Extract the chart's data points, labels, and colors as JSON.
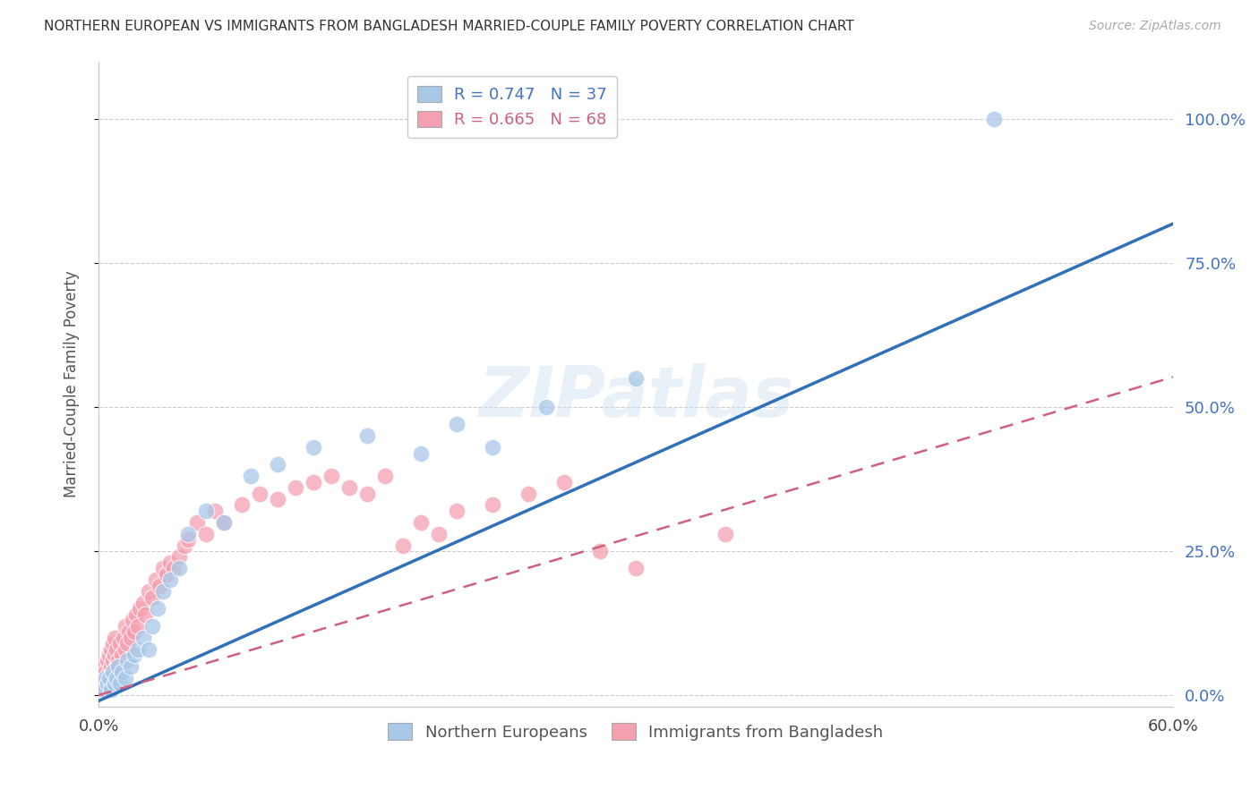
{
  "title": "NORTHERN EUROPEAN VS IMMIGRANTS FROM BANGLADESH MARRIED-COUPLE FAMILY POVERTY CORRELATION CHART",
  "source": "Source: ZipAtlas.com",
  "ylabel": "Married-Couple Family Poverty",
  "xlim": [
    0.0,
    0.6
  ],
  "ylim": [
    -0.02,
    1.1
  ],
  "ytick_labels": [
    "0.0%",
    "25.0%",
    "50.0%",
    "75.0%",
    "100.0%"
  ],
  "ytick_values": [
    0.0,
    0.25,
    0.5,
    0.75,
    1.0
  ],
  "xtick_values": [
    0.0,
    0.1,
    0.2,
    0.3,
    0.4,
    0.5,
    0.6
  ],
  "xtick_labels": [
    "0.0%",
    "",
    "",
    "",
    "",
    "",
    "60.0%"
  ],
  "legend1_label": "R = 0.747   N = 37",
  "legend2_label": "R = 0.665   N = 68",
  "blue_color": "#a8c8e8",
  "pink_color": "#f4a0b0",
  "blue_line_color": "#3070b8",
  "pink_line_color": "#d06080",
  "watermark": "ZIPatlas",
  "ne_R": 0.747,
  "ne_N": 37,
  "bd_R": 0.665,
  "bd_N": 68,
  "northern_europeans_x": [
    0.002,
    0.003,
    0.004,
    0.005,
    0.006,
    0.007,
    0.008,
    0.009,
    0.01,
    0.011,
    0.012,
    0.013,
    0.015,
    0.016,
    0.018,
    0.02,
    0.022,
    0.025,
    0.028,
    0.03,
    0.033,
    0.036,
    0.04,
    0.045,
    0.05,
    0.06,
    0.07,
    0.085,
    0.1,
    0.12,
    0.15,
    0.18,
    0.2,
    0.22,
    0.25,
    0.3,
    0.5
  ],
  "northern_europeans_y": [
    0.02,
    0.01,
    0.03,
    0.02,
    0.03,
    0.01,
    0.04,
    0.02,
    0.03,
    0.05,
    0.02,
    0.04,
    0.03,
    0.06,
    0.05,
    0.07,
    0.08,
    0.1,
    0.08,
    0.12,
    0.15,
    0.18,
    0.2,
    0.22,
    0.28,
    0.32,
    0.3,
    0.38,
    0.4,
    0.43,
    0.45,
    0.42,
    0.47,
    0.43,
    0.5,
    0.55,
    1.0
  ],
  "bangladesh_x": [
    0.001,
    0.002,
    0.003,
    0.003,
    0.004,
    0.004,
    0.005,
    0.005,
    0.006,
    0.006,
    0.007,
    0.007,
    0.008,
    0.008,
    0.009,
    0.009,
    0.01,
    0.01,
    0.011,
    0.012,
    0.013,
    0.014,
    0.015,
    0.015,
    0.016,
    0.017,
    0.018,
    0.019,
    0.02,
    0.021,
    0.022,
    0.023,
    0.025,
    0.026,
    0.028,
    0.03,
    0.032,
    0.034,
    0.036,
    0.038,
    0.04,
    0.042,
    0.045,
    0.048,
    0.05,
    0.055,
    0.06,
    0.065,
    0.07,
    0.08,
    0.09,
    0.1,
    0.11,
    0.12,
    0.13,
    0.14,
    0.15,
    0.16,
    0.17,
    0.18,
    0.19,
    0.2,
    0.22,
    0.24,
    0.26,
    0.28,
    0.3,
    0.35
  ],
  "bangladesh_y": [
    0.02,
    0.01,
    0.03,
    0.05,
    0.02,
    0.04,
    0.03,
    0.06,
    0.04,
    0.07,
    0.05,
    0.08,
    0.06,
    0.09,
    0.07,
    0.1,
    0.05,
    0.08,
    0.06,
    0.09,
    0.07,
    0.1,
    0.08,
    0.12,
    0.09,
    0.11,
    0.1,
    0.13,
    0.11,
    0.14,
    0.12,
    0.15,
    0.16,
    0.14,
    0.18,
    0.17,
    0.2,
    0.19,
    0.22,
    0.21,
    0.23,
    0.22,
    0.24,
    0.26,
    0.27,
    0.3,
    0.28,
    0.32,
    0.3,
    0.33,
    0.35,
    0.34,
    0.36,
    0.37,
    0.38,
    0.36,
    0.35,
    0.38,
    0.26,
    0.3,
    0.28,
    0.32,
    0.33,
    0.35,
    0.37,
    0.25,
    0.22,
    0.28
  ]
}
